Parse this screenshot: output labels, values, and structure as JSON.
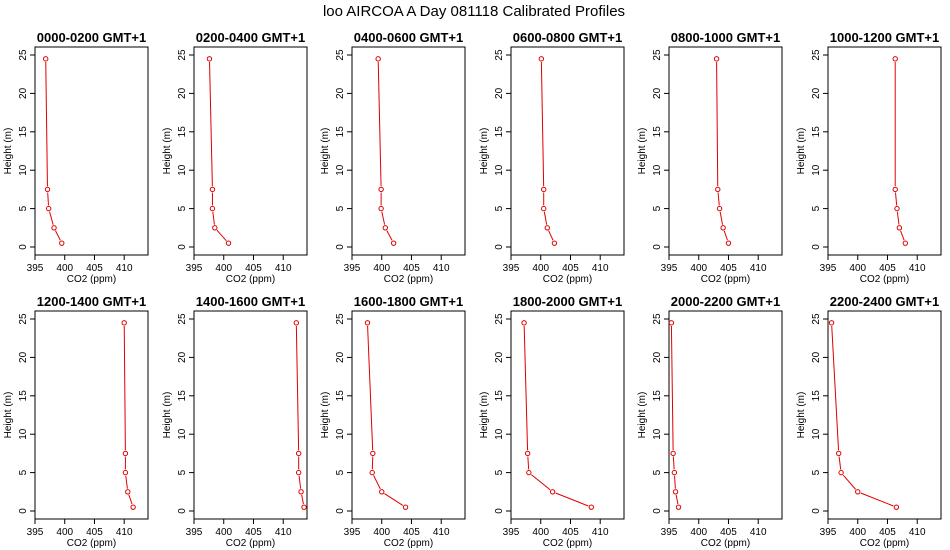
{
  "figure": {
    "title": "loo AIRCOA A  Day 081118  Calibrated Profiles"
  },
  "chart_data": [
    {
      "type": "line",
      "title": "0000-0200 GMT+1",
      "xlabel": "CO2 (ppm)",
      "ylabel": "Height (m)",
      "xlim": [
        395,
        414
      ],
      "ylim": [
        0,
        25
      ],
      "xticks": [
        395,
        400,
        405,
        410
      ],
      "yticks": [
        0,
        5,
        10,
        15,
        20,
        25
      ],
      "color": "#e00000",
      "markers": "open-circle",
      "series": [
        {
          "x": [
            399.5,
            398.2,
            397.3,
            397.1,
            396.8
          ],
          "y": [
            0.5,
            2.5,
            5,
            7.5,
            24.5
          ]
        }
      ]
    },
    {
      "type": "line",
      "title": "0200-0400 GMT+1",
      "xlabel": "CO2 (ppm)",
      "ylabel": "Height (m)",
      "xlim": [
        395,
        414
      ],
      "ylim": [
        0,
        25
      ],
      "xticks": [
        395,
        400,
        405,
        410
      ],
      "yticks": [
        0,
        5,
        10,
        15,
        20,
        25
      ],
      "color": "#e00000",
      "markers": "open-circle",
      "series": [
        {
          "x": [
            400.8,
            398.5,
            398.1,
            398.1,
            397.6
          ],
          "y": [
            0.5,
            2.5,
            5,
            7.5,
            24.5
          ]
        }
      ]
    },
    {
      "type": "line",
      "title": "0400-0600 GMT+1",
      "xlabel": "CO2 (ppm)",
      "ylabel": "Height (m)",
      "xlim": [
        395,
        414
      ],
      "ylim": [
        0,
        25
      ],
      "xticks": [
        395,
        400,
        405,
        410
      ],
      "yticks": [
        0,
        5,
        10,
        15,
        20,
        25
      ],
      "color": "#e00000",
      "markers": "open-circle",
      "series": [
        {
          "x": [
            402.0,
            400.6,
            399.9,
            399.9,
            399.4
          ],
          "y": [
            0.5,
            2.5,
            5,
            7.5,
            24.5
          ]
        }
      ]
    },
    {
      "type": "line",
      "title": "0600-0800 GMT+1",
      "xlabel": "CO2 (ppm)",
      "ylabel": "Height (m)",
      "xlim": [
        395,
        414
      ],
      "ylim": [
        0,
        25
      ],
      "xticks": [
        395,
        400,
        405,
        410
      ],
      "yticks": [
        0,
        5,
        10,
        15,
        20,
        25
      ],
      "color": "#e00000",
      "markers": "open-circle",
      "series": [
        {
          "x": [
            402.3,
            401.1,
            400.5,
            400.5,
            400.1
          ],
          "y": [
            0.5,
            2.5,
            5,
            7.5,
            24.5
          ]
        }
      ]
    },
    {
      "type": "line",
      "title": "0800-1000 GMT+1",
      "xlabel": "CO2 (ppm)",
      "ylabel": "Height (m)",
      "xlim": [
        395,
        414
      ],
      "ylim": [
        0,
        25
      ],
      "xticks": [
        395,
        400,
        405,
        410
      ],
      "yticks": [
        0,
        5,
        10,
        15,
        20,
        25
      ],
      "color": "#e00000",
      "markers": "open-circle",
      "series": [
        {
          "x": [
            405.0,
            404.1,
            403.5,
            403.2,
            403.0
          ],
          "y": [
            0.5,
            2.5,
            5,
            7.5,
            24.5
          ]
        }
      ]
    },
    {
      "type": "line",
      "title": "1000-1200 GMT+1",
      "xlabel": "CO2 (ppm)",
      "ylabel": "Height (m)",
      "xlim": [
        395,
        414
      ],
      "ylim": [
        0,
        25
      ],
      "xticks": [
        395,
        400,
        405,
        410
      ],
      "yticks": [
        0,
        5,
        10,
        15,
        20,
        25
      ],
      "color": "#e00000",
      "markers": "open-circle",
      "series": [
        {
          "x": [
            408.0,
            407.0,
            406.6,
            406.3,
            406.3
          ],
          "y": [
            0.5,
            2.5,
            5,
            7.5,
            24.5
          ]
        }
      ]
    },
    {
      "type": "line",
      "title": "1200-1400 GMT+1",
      "xlabel": "CO2 (ppm)",
      "ylabel": "Height (m)",
      "xlim": [
        395,
        414
      ],
      "ylim": [
        0,
        25
      ],
      "xticks": [
        395,
        400,
        405,
        410
      ],
      "yticks": [
        0,
        5,
        10,
        15,
        20,
        25
      ],
      "color": "#e00000",
      "markers": "open-circle",
      "series": [
        {
          "x": [
            411.5,
            410.6,
            410.2,
            410.2,
            410.0
          ],
          "y": [
            0.5,
            2.5,
            5,
            7.5,
            24.5
          ]
        }
      ]
    },
    {
      "type": "line",
      "title": "1400-1600 GMT+1",
      "xlabel": "CO2 (ppm)",
      "ylabel": "Height (m)",
      "xlim": [
        395,
        414
      ],
      "ylim": [
        0,
        25
      ],
      "xticks": [
        395,
        400,
        405,
        410
      ],
      "yticks": [
        0,
        5,
        10,
        15,
        20,
        25
      ],
      "color": "#e00000",
      "markers": "open-circle",
      "series": [
        {
          "x": [
            413.5,
            413.0,
            412.6,
            412.6,
            412.2
          ],
          "y": [
            0.5,
            2.5,
            5,
            7.5,
            24.5
          ]
        }
      ]
    },
    {
      "type": "line",
      "title": "1600-1800 GMT+1",
      "xlabel": "CO2 (ppm)",
      "ylabel": "Height (m)",
      "xlim": [
        395,
        414
      ],
      "ylim": [
        0,
        25
      ],
      "xticks": [
        395,
        400,
        405,
        410
      ],
      "yticks": [
        0,
        5,
        10,
        15,
        20,
        25
      ],
      "color": "#e00000",
      "markers": "open-circle",
      "series": [
        {
          "x": [
            404.0,
            400.0,
            398.4,
            398.5,
            397.6
          ],
          "y": [
            0.5,
            2.5,
            5,
            7.5,
            24.5
          ]
        }
      ]
    },
    {
      "type": "line",
      "title": "1800-2000 GMT+1",
      "xlabel": "CO2 (ppm)",
      "ylabel": "Height (m)",
      "xlim": [
        395,
        414
      ],
      "ylim": [
        0,
        25
      ],
      "xticks": [
        395,
        400,
        405,
        410
      ],
      "yticks": [
        0,
        5,
        10,
        15,
        20,
        25
      ],
      "color": "#e00000",
      "markers": "open-circle",
      "series": [
        {
          "x": [
            408.5,
            402.0,
            398.0,
            397.8,
            397.2
          ],
          "y": [
            0.5,
            2.5,
            5,
            7.5,
            24.5
          ]
        }
      ]
    },
    {
      "type": "line",
      "title": "2000-2200 GMT+1",
      "xlabel": "CO2 (ppm)",
      "ylabel": "Height (m)",
      "xlim": [
        395,
        414
      ],
      "ylim": [
        0,
        25
      ],
      "xticks": [
        395,
        400,
        405,
        410
      ],
      "yticks": [
        0,
        5,
        10,
        15,
        20,
        25
      ],
      "color": "#e00000",
      "markers": "open-circle",
      "series": [
        {
          "x": [
            396.6,
            396.1,
            395.9,
            395.7,
            395.4
          ],
          "y": [
            0.5,
            2.5,
            5,
            7.5,
            24.5
          ]
        }
      ]
    },
    {
      "type": "line",
      "title": "2200-2400 GMT+1",
      "xlabel": "CO2 (ppm)",
      "ylabel": "Height (m)",
      "xlim": [
        395,
        414
      ],
      "ylim": [
        0,
        25
      ],
      "xticks": [
        395,
        400,
        405,
        410
      ],
      "yticks": [
        0,
        5,
        10,
        15,
        20,
        25
      ],
      "color": "#e00000",
      "markers": "open-circle",
      "series": [
        {
          "x": [
            406.5,
            400.0,
            397.2,
            396.8,
            395.6
          ],
          "y": [
            0.5,
            2.5,
            5,
            7.5,
            24.5
          ]
        }
      ]
    }
  ]
}
